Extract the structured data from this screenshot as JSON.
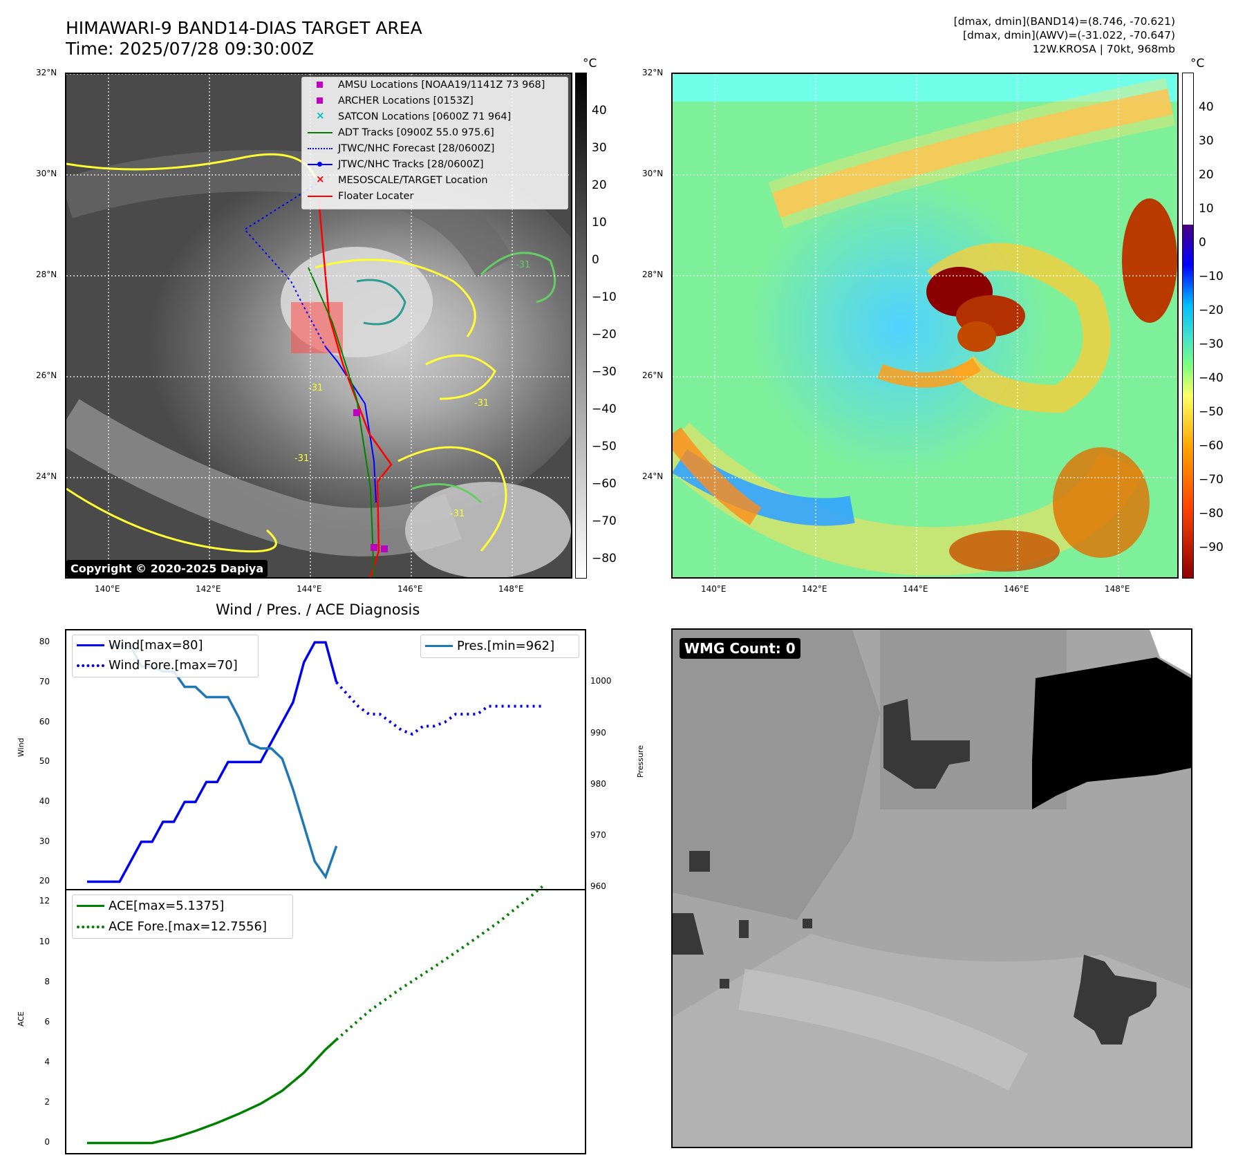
{
  "header": {
    "title_line1": "HIMAWARI-9 BAND14-DIAS TARGET AREA",
    "title_line2": "Time: 2025/07/28 09:30:00Z",
    "info_line1": "[dmax, dmin](BAND14)=(8.746, -70.621)",
    "info_line2": "[dmax, dmin](AWV)=(-31.022, -70.647)",
    "info_line3": "12W.KROSA | 70kt, 968mb"
  },
  "map_axes": {
    "lat_labels": [
      "32°N",
      "30°N",
      "28°N",
      "26°N",
      "24°N"
    ],
    "lon_labels": [
      "140°E",
      "142°E",
      "144°E",
      "146°E",
      "148°E"
    ],
    "colorbar_unit": "°C"
  },
  "left_map": {
    "colorbar_ticks": [
      "40",
      "30",
      "20",
      "10",
      "0",
      "−10",
      "−20",
      "−30",
      "−40",
      "−50",
      "−60",
      "−70",
      "−80"
    ],
    "contour_label": "-31",
    "copyright": "Copyright © 2020-2025 Dapiya",
    "legend": [
      {
        "label": "AMSU Locations [NOAA19/1141Z 73 968]",
        "icon": "square-marker",
        "color": "#c000c0"
      },
      {
        "label": "ARCHER Locations [0153Z]",
        "icon": "square-marker",
        "color": "#c000c0"
      },
      {
        "label": "SATCON Locations [0600Z 71 964]",
        "icon": "x-marker",
        "color": "#00bfbf"
      },
      {
        "label": "ADT Tracks [0900Z 55.0 975.6]",
        "icon": "solid-line",
        "color": "#008000"
      },
      {
        "label": "JTWC/NHC Forecast [28/0600Z]",
        "icon": "dotted-line",
        "color": "#0000ff"
      },
      {
        "label": "JTWC/NHC Tracks [28/0600Z]",
        "icon": "line-dot",
        "color": "#0000ff"
      },
      {
        "label": "MESOSCALE/TARGET Location",
        "icon": "x-marker",
        "color": "#ff0000"
      },
      {
        "label": "Floater Locater",
        "icon": "solid-line",
        "color": "#ff0000"
      }
    ]
  },
  "right_map": {
    "colorbar_ticks": [
      "40",
      "30",
      "20",
      "10",
      "0",
      "−10",
      "−20",
      "−30",
      "−40",
      "−50",
      "−60",
      "−70",
      "−80",
      "−90"
    ]
  },
  "diagnosis_title": "Wind / Pres. / ACE Diagnosis",
  "wmg_label": "WMG Count: 0",
  "colors": {
    "wind": "#0000ee",
    "pressure": "#1f77b4",
    "ace": "#007f00"
  },
  "chart_data": [
    {
      "type": "line",
      "title": "Wind / Pres. / ACE Diagnosis",
      "ylabel": "Wind",
      "ylabel_right": "Pressure",
      "ylim": [
        18,
        83
      ],
      "ylim_right": [
        959.5,
        1010
      ],
      "yticks": [
        "80",
        "70",
        "60",
        "50",
        "40",
        "30",
        "20"
      ],
      "yticks_right": [
        "1000",
        "990",
        "980",
        "970",
        "960"
      ],
      "legend_left": [
        "Wind[max=80]",
        "Wind Fore.[max=70]"
      ],
      "legend_right": [
        "Pres.[min=962]"
      ],
      "x": [
        0,
        1,
        2,
        3,
        4,
        5,
        6,
        7,
        8,
        9,
        10,
        11,
        12,
        13,
        14,
        15,
        16,
        17,
        18,
        19,
        20,
        21,
        22,
        23,
        24,
        25,
        26,
        27,
        28,
        29,
        30,
        31,
        32,
        33,
        34,
        35,
        36,
        37,
        38,
        39,
        40,
        41,
        42
      ],
      "series": [
        {
          "name": "Wind[max=80]",
          "style": "solid",
          "x": [
            0,
            1,
            2,
            3,
            4,
            5,
            6,
            7,
            8,
            9,
            10,
            11,
            12,
            13,
            14,
            15,
            16,
            17,
            18,
            19,
            20,
            21,
            22,
            23,
            24,
            25,
            26,
            27,
            28
          ],
          "values": [
            20,
            20,
            20,
            20,
            25,
            30,
            30,
            35,
            35,
            40,
            40,
            45,
            45,
            50,
            50,
            50,
            50,
            55,
            60,
            65,
            75,
            80,
            80,
            70,
            null,
            null,
            null,
            null,
            null
          ]
        },
        {
          "name": "Wind Fore.[max=70]",
          "style": "dotted",
          "x": [
            23,
            24,
            25,
            26,
            27,
            28,
            29,
            30,
            31,
            32,
            33,
            34,
            35,
            36,
            37,
            38,
            39,
            40,
            41,
            42
          ],
          "values": [
            70,
            67,
            64,
            62,
            62,
            60,
            58,
            57,
            59,
            59,
            60,
            62,
            62,
            62,
            64,
            64,
            64,
            64,
            64,
            64
          ]
        },
        {
          "name": "Pres.[min=962]",
          "style": "solid",
          "axis": "right",
          "x": [
            2,
            3,
            4,
            5,
            6,
            7,
            8,
            9,
            10,
            11,
            12,
            13,
            14,
            15,
            16,
            17,
            18,
            19,
            20,
            21,
            22,
            23
          ],
          "values": [
            1007,
            1007,
            1007,
            1003,
            1003,
            1002,
            1002,
            999,
            999,
            997,
            997,
            997,
            993,
            988,
            987,
            987,
            985,
            979,
            972,
            965,
            962,
            968
          ]
        }
      ]
    },
    {
      "type": "line",
      "ylabel": "ACE",
      "ylim": [
        -0.5,
        12.6
      ],
      "yticks": [
        "12",
        "10",
        "8",
        "6",
        "4",
        "2",
        "0"
      ],
      "legend": [
        "ACE[max=5.1375]",
        "ACE Fore.[max=12.7556]"
      ],
      "series": [
        {
          "name": "ACE[max=5.1375]",
          "style": "solid",
          "x": [
            0,
            2,
            4,
            6,
            8,
            10,
            12,
            14,
            16,
            18,
            20,
            22,
            23
          ],
          "values": [
            0,
            0,
            0,
            0,
            0.25,
            0.6,
            1.0,
            1.45,
            1.95,
            2.6,
            3.5,
            4.65,
            5.14
          ]
        },
        {
          "name": "ACE Fore.[max=12.7556]",
          "style": "dotted",
          "x": [
            23,
            26,
            29,
            32,
            35,
            38,
            41,
            42
          ],
          "values": [
            5.14,
            6.55,
            7.7,
            8.75,
            9.85,
            11.0,
            12.3,
            12.76
          ]
        }
      ]
    }
  ]
}
